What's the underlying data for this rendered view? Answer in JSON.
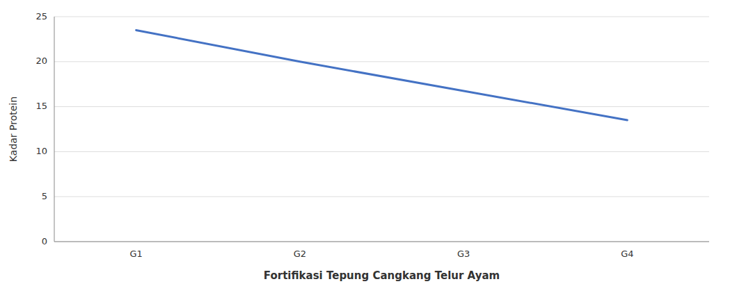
{
  "chart_data": {
    "type": "line",
    "categories": [
      "G1",
      "G2",
      "G3",
      "G4"
    ],
    "values": [
      23.5,
      20.0,
      null,
      13.5
    ],
    "color": "#4472C4",
    "xlabel": "Fortifikasi Tepung Cangkang Telur Ayam",
    "ylabel": "Kadar Protein",
    "ylim": [
      0,
      25
    ],
    "yticks": [
      0,
      5,
      10,
      15,
      20,
      25
    ],
    "grid": true
  }
}
